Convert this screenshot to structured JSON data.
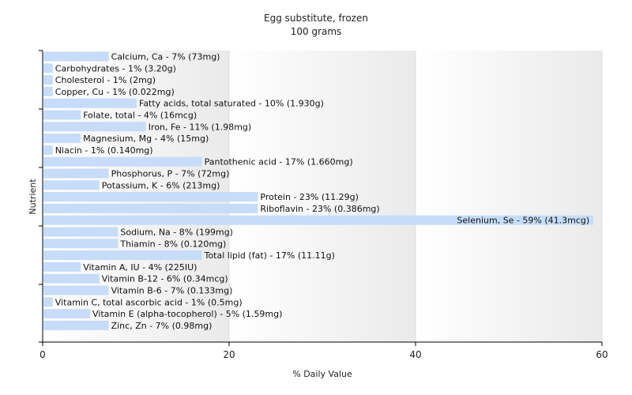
{
  "chart_data": {
    "type": "bar",
    "orientation": "horizontal",
    "title": "Egg substitute, frozen",
    "subtitle": "100 grams",
    "xlabel": "% Daily Value",
    "ylabel": "Nutrient",
    "xlim": [
      0,
      60
    ],
    "xticks": [
      0,
      20,
      40,
      60
    ],
    "grid": true,
    "colors": {
      "bar": "#c6dcf8",
      "axis": "#000000",
      "band_light": "#ffffff",
      "band_dark": "#eaeaea"
    },
    "categories": [
      "Calcium, Ca",
      "Carbohydrates",
      "Cholesterol",
      "Copper, Cu",
      "Fatty acids, total saturated",
      "Folate, total",
      "Iron, Fe",
      "Magnesium, Mg",
      "Niacin",
      "Pantothenic acid",
      "Phosphorus, P",
      "Potassium, K",
      "Protein",
      "Riboflavin",
      "Selenium, Se",
      "Sodium, Na",
      "Thiamin",
      "Total lipid (fat)",
      "Vitamin A, IU",
      "Vitamin B-12",
      "Vitamin B-6",
      "Vitamin C, total ascorbic acid",
      "Vitamin E (alpha-tocopherol)",
      "Zinc, Zn"
    ],
    "values": [
      7,
      1,
      1,
      1,
      10,
      4,
      11,
      4,
      1,
      17,
      7,
      6,
      23,
      23,
      59,
      8,
      8,
      17,
      4,
      6,
      7,
      1,
      5,
      7
    ],
    "labels": [
      "Calcium, Ca - 7% (73mg)",
      "Carbohydrates - 1% (3.20g)",
      "Cholesterol - 1% (2mg)",
      "Copper, Cu - 1% (0.022mg)",
      "Fatty acids, total saturated - 10% (1.930g)",
      "Folate, total - 4% (16mcg)",
      "Iron, Fe - 11% (1.98mg)",
      "Magnesium, Mg - 4% (15mg)",
      "Niacin - 1% (0.140mg)",
      "Pantothenic acid - 17% (1.660mg)",
      "Phosphorus, P - 7% (72mg)",
      "Potassium, K - 6% (213mg)",
      "Protein - 23% (11.29g)",
      "Riboflavin - 23% (0.386mg)",
      "Selenium, Se - 59% (41.3mcg)",
      "Sodium, Na - 8% (199mg)",
      "Thiamin - 8% (0.120mg)",
      "Total lipid (fat) - 17% (11.11g)",
      "Vitamin A, IU - 4% (225IU)",
      "Vitamin B-12 - 6% (0.34mcg)",
      "Vitamin B-6 - 7% (0.133mg)",
      "Vitamin C, total ascorbic acid - 1% (0.5mg)",
      "Vitamin E (alpha-tocopherol) - 5% (1.59mg)",
      "Zinc, Zn - 7% (0.98mg)"
    ]
  }
}
